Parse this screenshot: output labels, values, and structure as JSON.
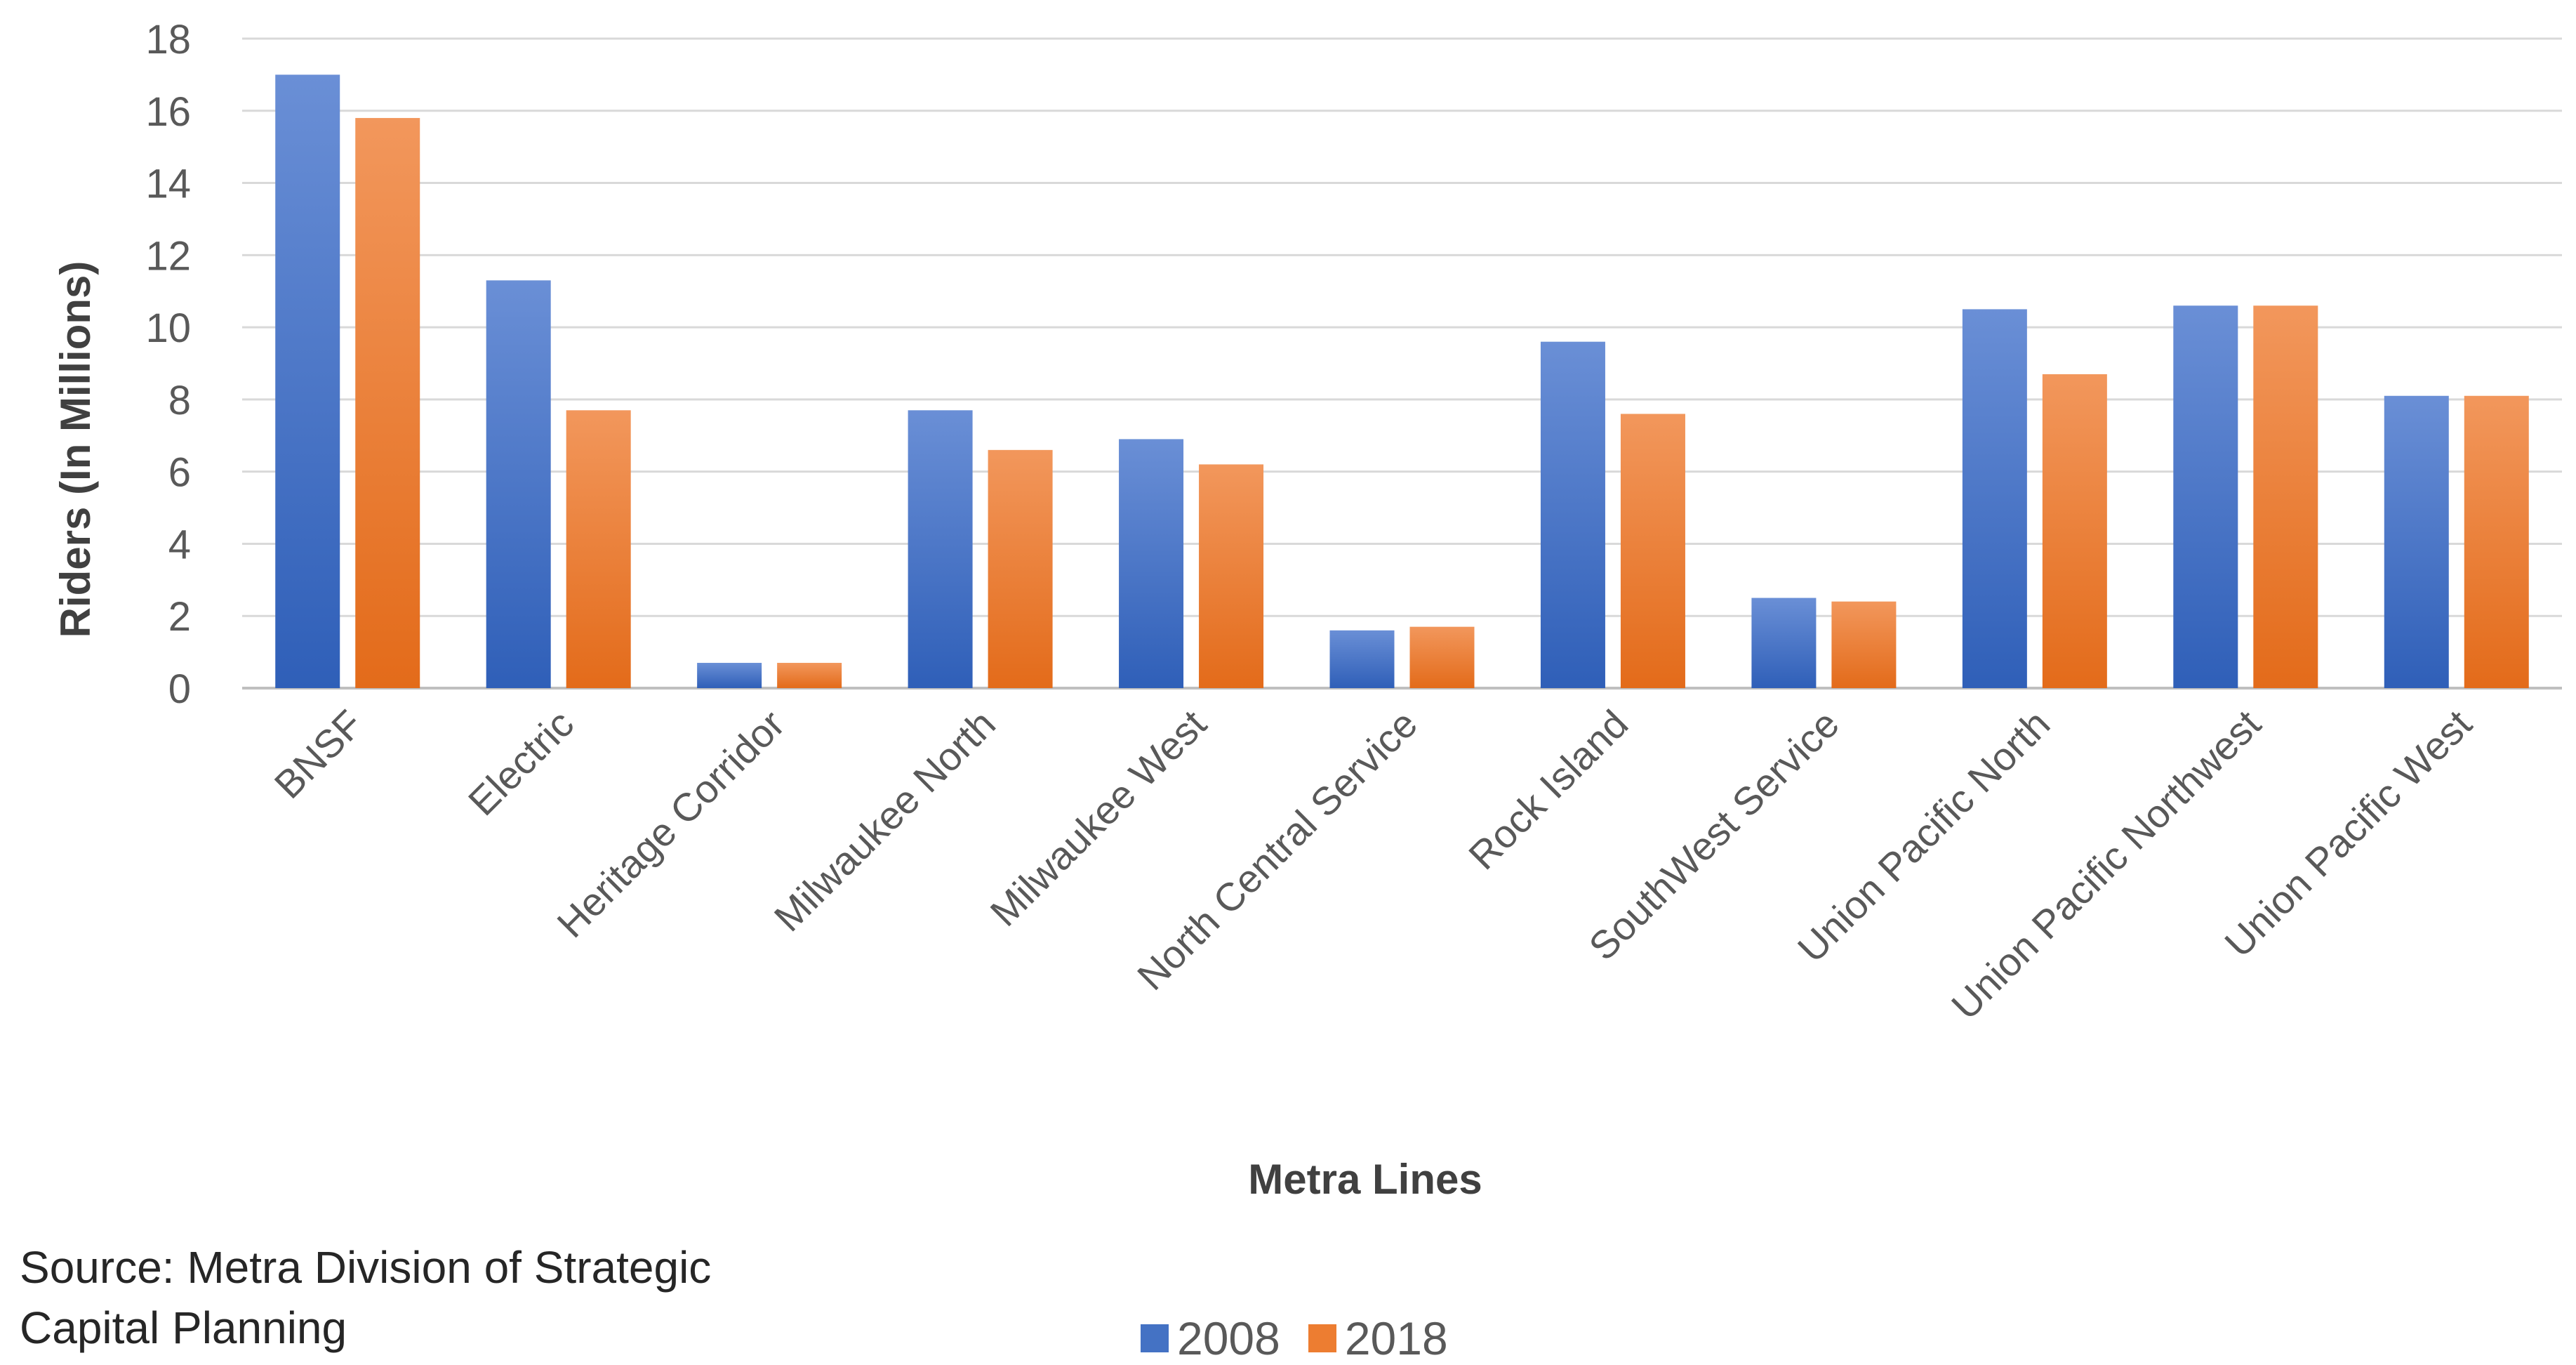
{
  "chart_data": {
    "type": "bar",
    "categories": [
      "BNSF",
      "Electric",
      "Heritage Corridor",
      "Milwaukee North",
      "Milwaukee West",
      "North Central Service",
      "Rock Island",
      "SouthWest Service",
      "Union Pacific North",
      "Union Pacific Northwest",
      "Union Pacific West"
    ],
    "series": [
      {
        "name": "2008",
        "color": "#4472C4",
        "values": [
          17.0,
          11.3,
          0.7,
          7.7,
          6.9,
          1.6,
          9.6,
          2.5,
          10.5,
          10.6,
          8.1
        ]
      },
      {
        "name": "2018",
        "color": "#ED7D31",
        "values": [
          15.8,
          7.7,
          0.7,
          6.6,
          6.2,
          1.7,
          7.6,
          2.4,
          8.7,
          10.6,
          8.1
        ]
      }
    ],
    "xlabel": "Metra Lines",
    "ylabel": "Riders (In Millions)",
    "ylim": [
      0,
      18
    ],
    "yticks": [
      0,
      2,
      4,
      6,
      8,
      10,
      12,
      14,
      16,
      18
    ],
    "grid": true,
    "legend_position": "bottom"
  },
  "source_note": {
    "line1": "Source: Metra Division of Strategic",
    "line2": "Capital Planning"
  }
}
